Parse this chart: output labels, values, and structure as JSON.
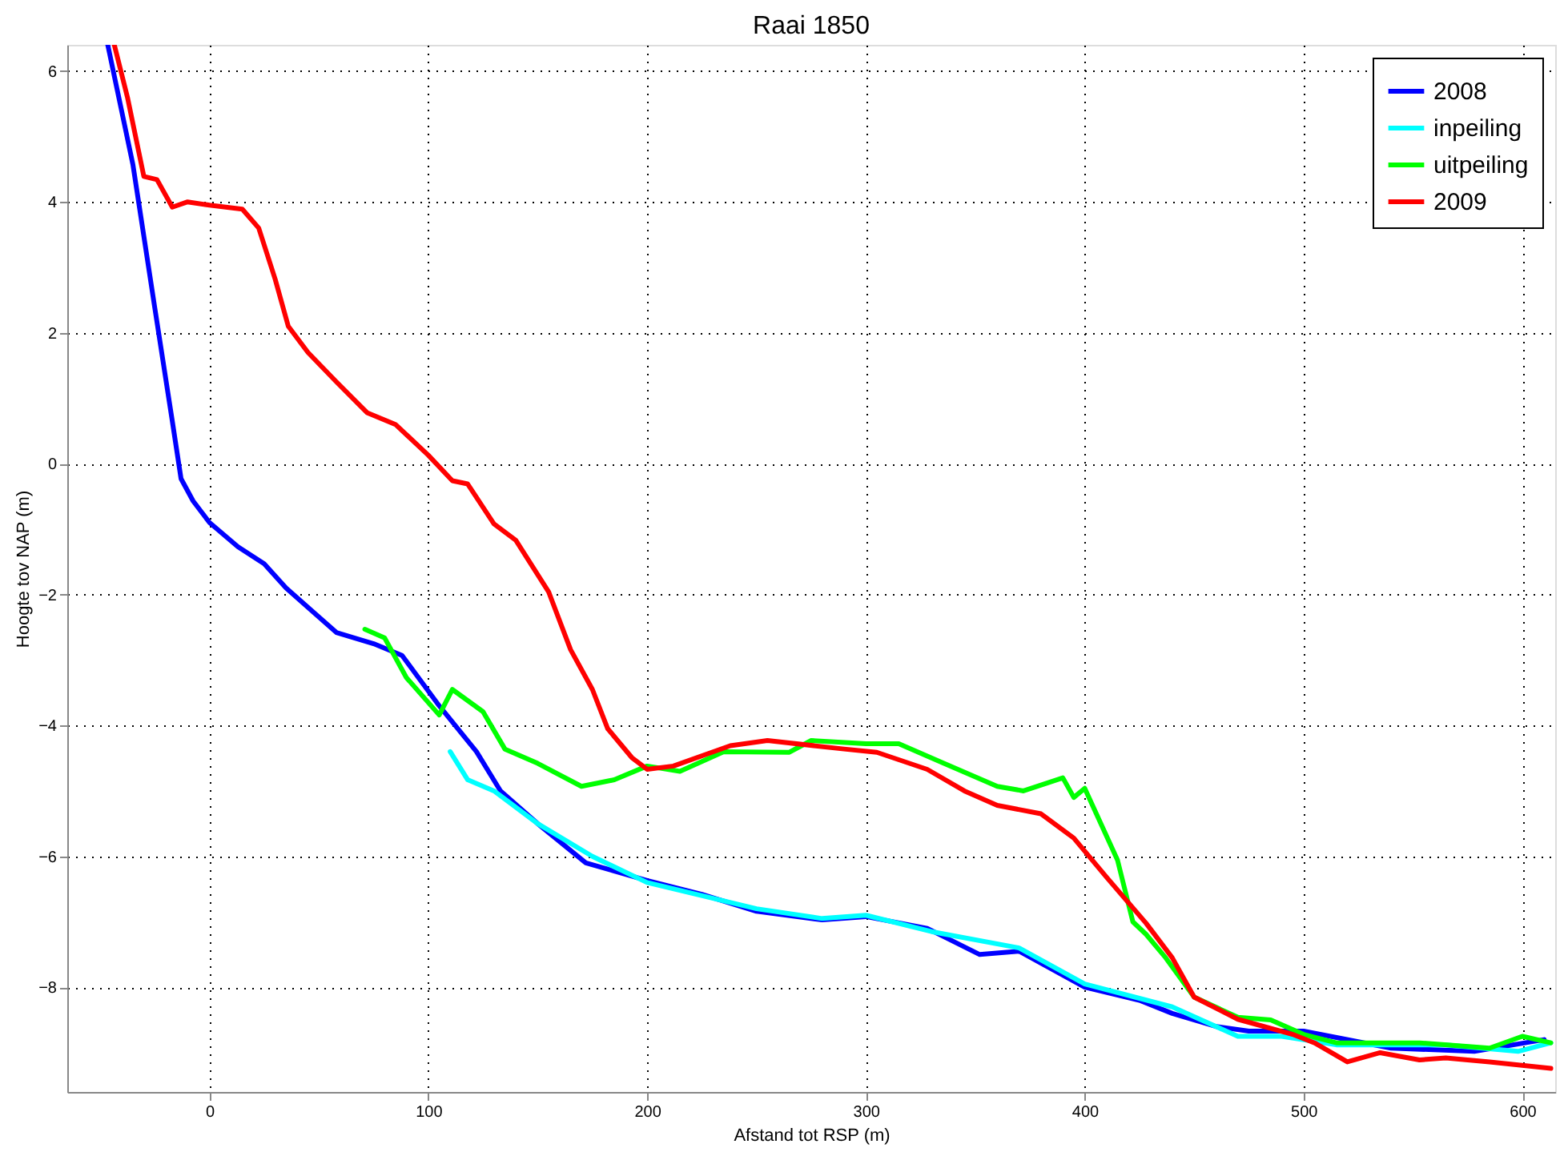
{
  "chart_data": {
    "type": "line",
    "title": "Raai 1850",
    "xlabel": "Afstand tot RSP (m)",
    "ylabel": "Hoogte tov NAP (m)",
    "xlim": [
      -65,
      615
    ],
    "ylim": [
      -9.6,
      6.4
    ],
    "xticks": [
      0,
      100,
      200,
      300,
      400,
      500,
      600
    ],
    "yticks": [
      -8,
      -6,
      -4,
      -2,
      0,
      2,
      4,
      6
    ],
    "grid": true,
    "legend": "top right",
    "marker": "none",
    "line_style": "solid",
    "series": [
      {
        "name": "2008",
        "color": "#0000ff",
        "x": [
          -46.5,
          -35,
          -25,
          -17,
          -13,
          -7.5,
          0,
          13,
          25,
          35,
          58,
          75,
          88,
          105,
          122,
          133,
          150,
          172,
          200,
          225,
          250,
          280,
          300,
          328,
          352,
          370,
          400,
          425,
          440,
          460,
          475,
          500,
          540,
          578,
          610
        ],
        "values": [
          6.4,
          4.57,
          2.38,
          0.65,
          -0.23,
          -0.57,
          -0.9,
          -1.27,
          -1.53,
          -1.9,
          -2.58,
          -2.75,
          -2.93,
          -3.7,
          -4.4,
          -5.0,
          -5.5,
          -6.1,
          -6.37,
          -6.58,
          -6.84,
          -6.97,
          -6.92,
          -7.1,
          -7.5,
          -7.45,
          -8.0,
          -8.2,
          -8.4,
          -8.6,
          -8.67,
          -8.67,
          -8.93,
          -8.98,
          -8.8
        ]
      },
      {
        "name": "inpeiling",
        "color": "#00ffff",
        "x": [
          110,
          118,
          130,
          150,
          175,
          200,
          250,
          280,
          300,
          330,
          370,
          400,
          440,
          470,
          490,
          515,
          565,
          598,
          613
        ],
        "values": [
          -4.4,
          -4.83,
          -5.0,
          -5.5,
          -6.0,
          -6.4,
          -6.8,
          -6.95,
          -6.9,
          -7.15,
          -7.4,
          -7.95,
          -8.3,
          -8.75,
          -8.75,
          -8.88,
          -8.88,
          -8.98,
          -8.85
        ]
      },
      {
        "name": "uitpeiling",
        "color": "#00ff00",
        "x": [
          71,
          80,
          90,
          105,
          111,
          125,
          135,
          150,
          170,
          185,
          200,
          215,
          235,
          265,
          275,
          300,
          315,
          335,
          360,
          372,
          390,
          395,
          400,
          415,
          422,
          428,
          437,
          450,
          470,
          485,
          500,
          515,
          553,
          585,
          600,
          613
        ],
        "values": [
          -2.53,
          -2.66,
          -3.27,
          -3.84,
          -3.45,
          -3.79,
          -4.36,
          -4.58,
          -4.93,
          -4.83,
          -4.62,
          -4.7,
          -4.4,
          -4.41,
          -4.23,
          -4.28,
          -4.28,
          -4.57,
          -4.93,
          -5.0,
          -4.8,
          -5.1,
          -4.96,
          -6.06,
          -7.0,
          -7.19,
          -7.55,
          -8.15,
          -8.46,
          -8.5,
          -8.72,
          -8.85,
          -8.85,
          -8.93,
          -8.75,
          -8.85
        ]
      },
      {
        "name": "2009",
        "color": "#ff0000",
        "x": [
          -43.5,
          -37.5,
          -30,
          -24,
          -17,
          -10,
          0,
          15,
          22.5,
          30,
          36,
          45,
          58,
          72,
          85,
          100,
          111,
          118,
          130,
          140,
          155,
          165,
          175,
          182,
          193,
          200,
          212,
          238,
          255,
          290,
          305,
          328,
          345,
          360,
          380,
          395,
          410,
          428,
          440,
          450,
          470,
          495,
          505,
          520,
          535,
          553,
          565,
          585,
          613
        ],
        "values": [
          6.4,
          5.6,
          4.39,
          4.34,
          3.92,
          4.0,
          3.95,
          3.89,
          3.6,
          2.82,
          2.1,
          1.7,
          1.25,
          0.78,
          0.6,
          0.13,
          -0.26,
          -0.31,
          -0.92,
          -1.17,
          -1.96,
          -2.84,
          -3.45,
          -4.05,
          -4.49,
          -4.67,
          -4.62,
          -4.31,
          -4.23,
          -4.36,
          -4.41,
          -4.67,
          -5.0,
          -5.22,
          -5.35,
          -5.72,
          -6.32,
          -7.02,
          -7.55,
          -8.15,
          -8.49,
          -8.72,
          -8.85,
          -9.14,
          -9.0,
          -9.11,
          -9.08,
          -9.14,
          -9.24
        ]
      }
    ]
  }
}
